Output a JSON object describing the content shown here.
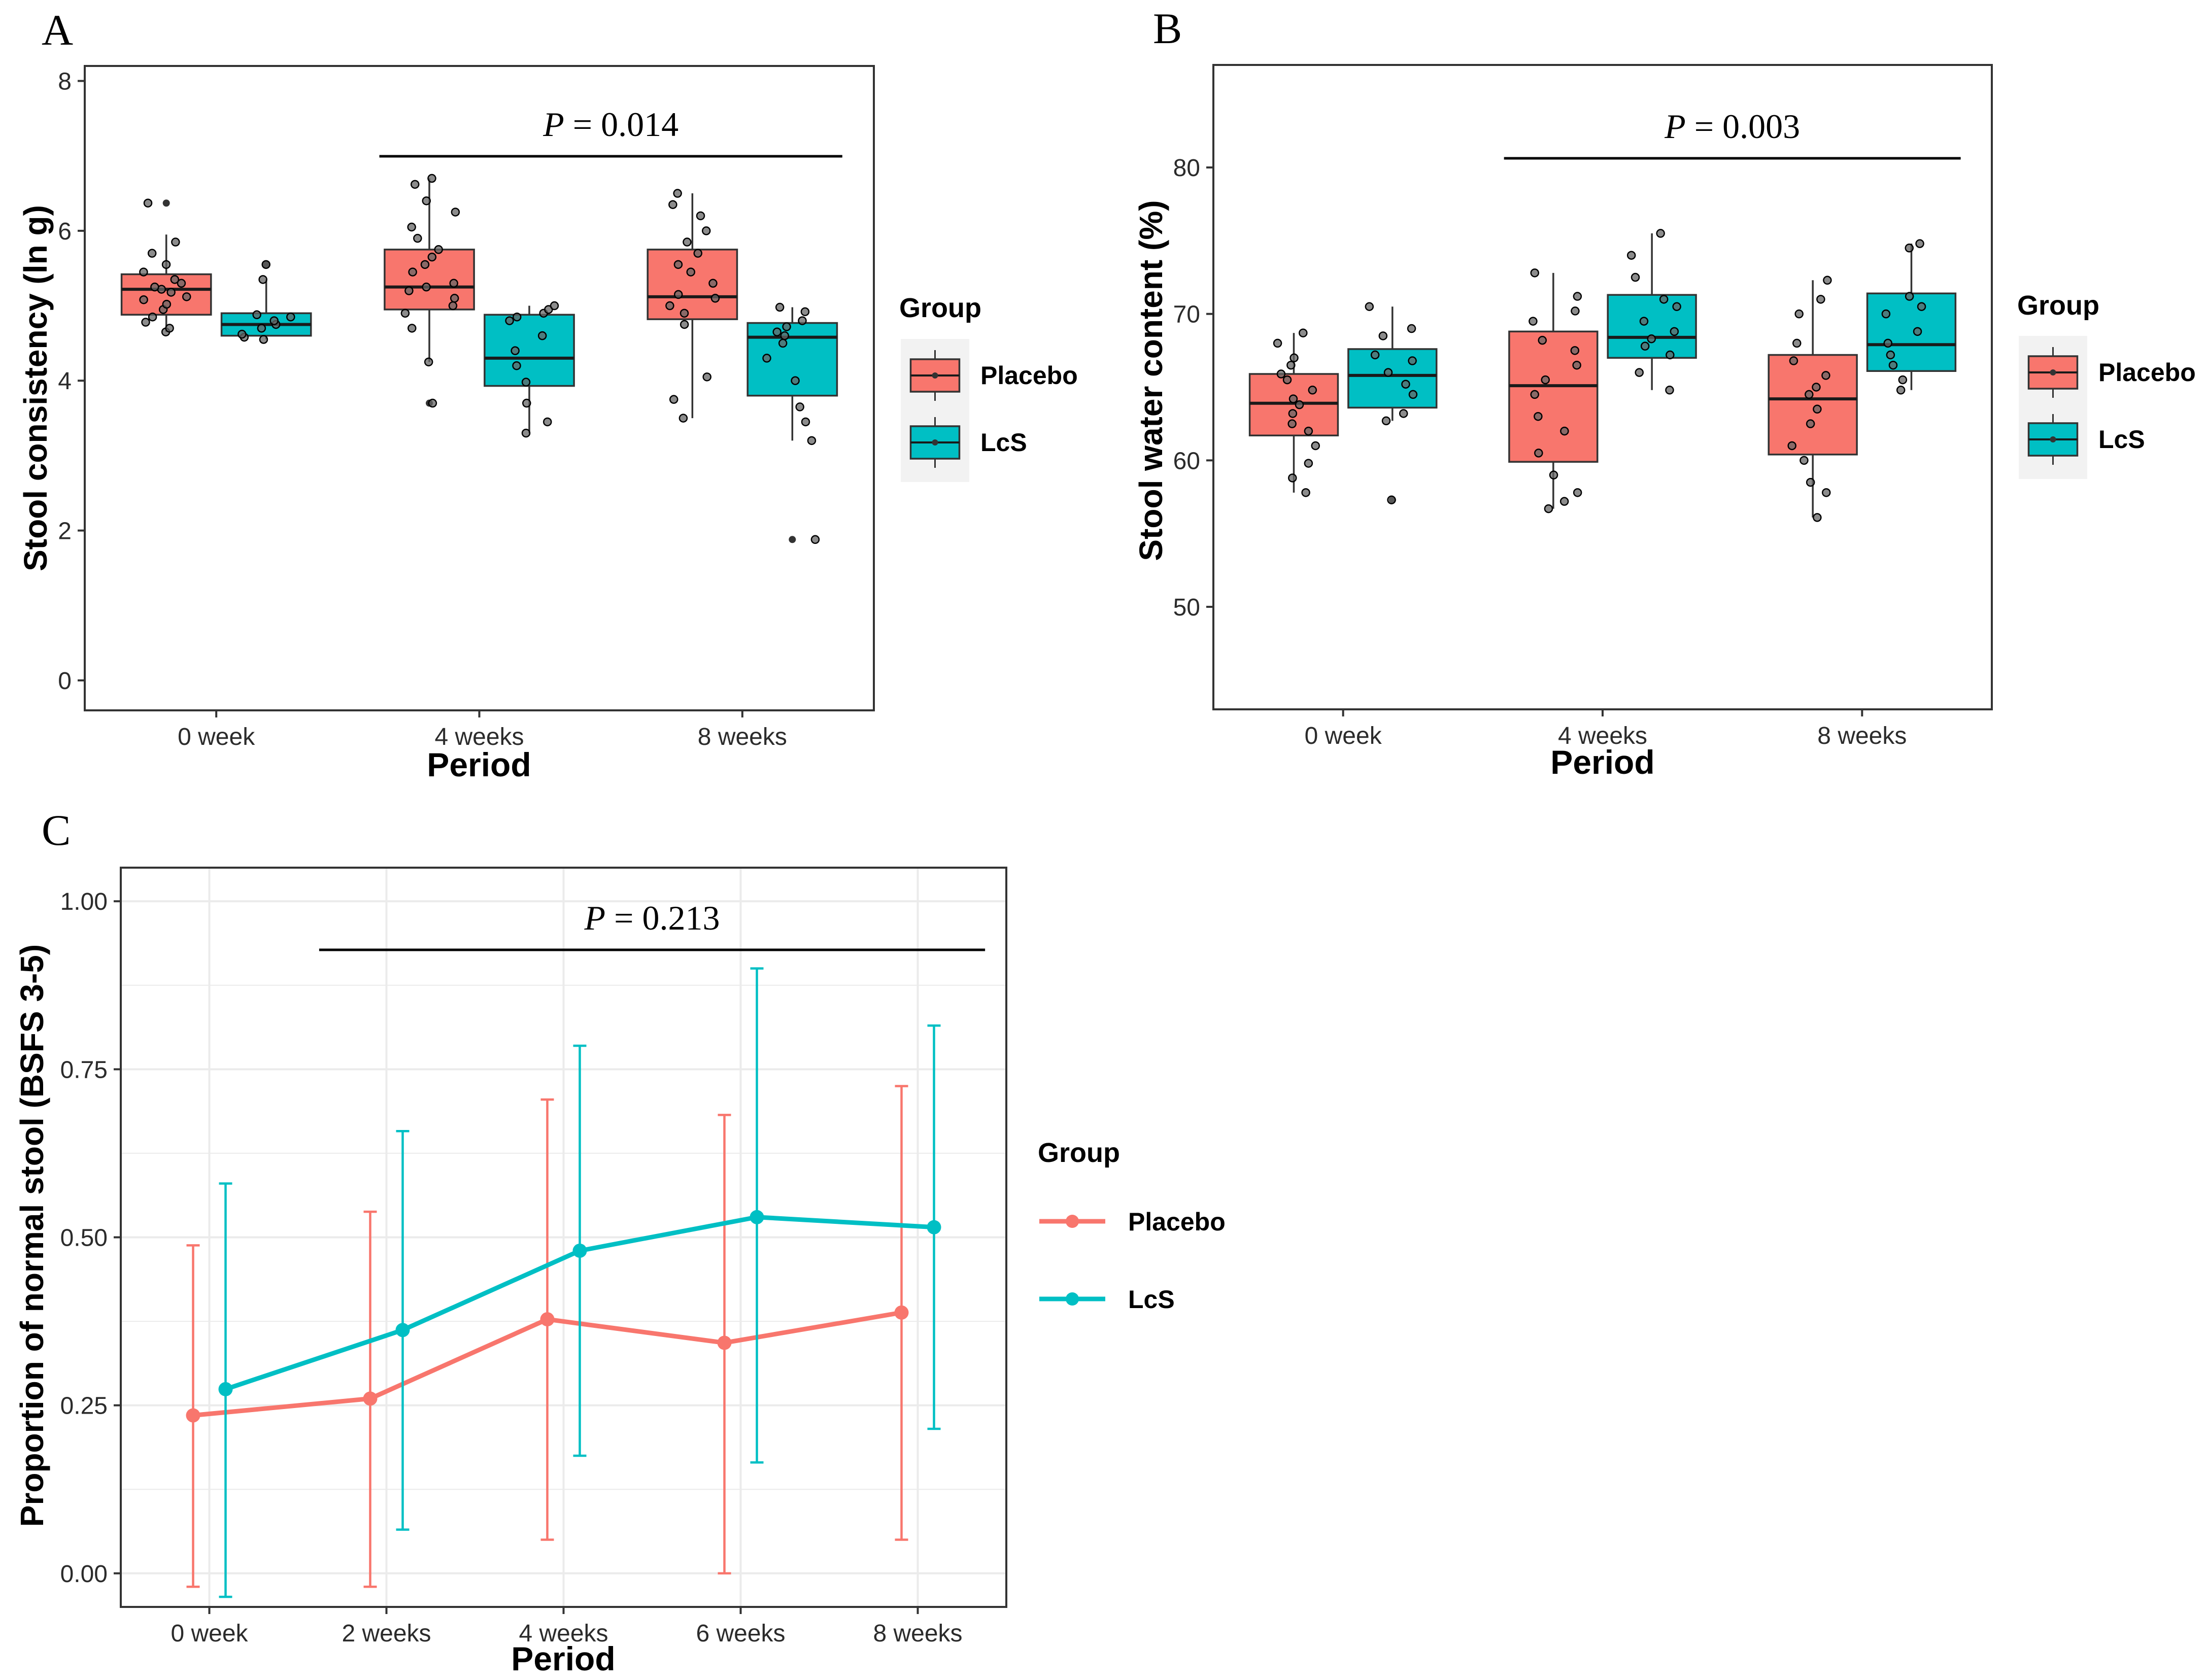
{
  "colors": {
    "placebo": "#F8766D",
    "lcs": "#00BFC4",
    "ink": "#000000",
    "jitter": "#333333",
    "panel_border": "#333333",
    "grid": "#EBEBEB",
    "legend_key_bg": "#F2F2F2"
  },
  "chart_data": [
    {
      "panel": "A",
      "type": "box",
      "xlabel": "Period",
      "ylabel": "Stool consistency (ln g)",
      "categories": [
        "0 week",
        "4 weeks",
        "8 weeks"
      ],
      "ylim": [
        -0.4,
        8.2
      ],
      "yticks": [
        0,
        2,
        4,
        6,
        8
      ],
      "legend": {
        "title": "Group",
        "entries": [
          "Placebo",
          "LcS"
        ],
        "position": "right"
      },
      "annotation": {
        "p_label": "P",
        "p_rest": " = 0.014",
        "from_category": "4 weeks",
        "to_category": "8 weeks"
      },
      "series": [
        {
          "name": "Placebo",
          "boxes": [
            {
              "q1": 4.88,
              "median": 5.22,
              "q3": 5.42,
              "lower": 4.65,
              "upper": 5.95,
              "outliers": [
                6.37
              ],
              "points": [
                4.65,
                4.7,
                4.78,
                4.85,
                4.95,
                5.02,
                5.08,
                5.12,
                5.18,
                5.22,
                5.25,
                5.3,
                5.35,
                5.45,
                5.55,
                5.7,
                5.85,
                6.37
              ]
            },
            {
              "q1": 4.95,
              "median": 5.25,
              "q3": 5.75,
              "lower": 4.25,
              "upper": 6.7,
              "outliers": [
                3.7
              ],
              "points": [
                3.7,
                4.25,
                4.7,
                4.9,
                5.0,
                5.1,
                5.2,
                5.25,
                5.3,
                5.45,
                5.55,
                5.65,
                5.75,
                5.9,
                6.05,
                6.25,
                6.4,
                6.62,
                6.7
              ]
            },
            {
              "q1": 4.82,
              "median": 5.12,
              "q3": 5.75,
              "lower": 3.5,
              "upper": 6.5,
              "outliers": [],
              "points": [
                3.5,
                3.75,
                4.05,
                4.75,
                4.9,
                5.0,
                5.1,
                5.15,
                5.3,
                5.45,
                5.55,
                5.7,
                5.85,
                6.0,
                6.2,
                6.35,
                6.5
              ]
            }
          ]
        },
        {
          "name": "LcS",
          "boxes": [
            {
              "q1": 4.6,
              "median": 4.75,
              "q3": 4.9,
              "lower": 4.55,
              "upper": 5.35,
              "outliers": [
                5.55
              ],
              "points": [
                4.55,
                4.58,
                4.62,
                4.7,
                4.75,
                4.8,
                4.85,
                4.88,
                5.35,
                5.55
              ]
            },
            {
              "q1": 3.93,
              "median": 4.3,
              "q3": 4.88,
              "lower": 3.3,
              "upper": 5.0,
              "outliers": [],
              "points": [
                3.3,
                3.45,
                3.7,
                3.98,
                4.2,
                4.4,
                4.6,
                4.8,
                4.85,
                4.9,
                4.95,
                5.0
              ]
            },
            {
              "q1": 3.8,
              "median": 4.58,
              "q3": 4.77,
              "lower": 3.2,
              "upper": 4.98,
              "outliers": [
                1.88
              ],
              "points": [
                1.88,
                3.2,
                3.45,
                3.65,
                4.0,
                4.3,
                4.5,
                4.6,
                4.65,
                4.72,
                4.8,
                4.92,
                4.98
              ]
            }
          ]
        }
      ]
    },
    {
      "panel": "B",
      "type": "box",
      "xlabel": "Period",
      "ylabel": "Stool water content (%)",
      "categories": [
        "0 week",
        "4 weeks",
        "8 weeks"
      ],
      "ylim": [
        43,
        87
      ],
      "yticks": [
        50,
        60,
        70,
        80
      ],
      "legend": {
        "title": "Group",
        "entries": [
          "Placebo",
          "LcS"
        ],
        "position": "right"
      },
      "annotation": {
        "p_label": "P",
        "p_rest": " = 0.003",
        "from_category": "4 weeks",
        "to_category": "8 weeks"
      },
      "series": [
        {
          "name": "Placebo",
          "boxes": [
            {
              "q1": 61.7,
              "median": 63.9,
              "q3": 65.9,
              "lower": 57.8,
              "upper": 68.7,
              "outliers": [],
              "points": [
                57.8,
                58.8,
                59.8,
                61.0,
                62.0,
                62.5,
                63.2,
                63.8,
                64.2,
                64.8,
                65.5,
                65.9,
                66.5,
                67.0,
                68.0,
                68.7
              ]
            },
            {
              "q1": 59.9,
              "median": 65.1,
              "q3": 68.8,
              "lower": 56.7,
              "upper": 72.8,
              "outliers": [],
              "points": [
                56.7,
                57.2,
                57.8,
                59.0,
                60.5,
                62.0,
                63.0,
                64.5,
                65.5,
                66.5,
                67.5,
                68.2,
                69.5,
                70.2,
                71.2,
                72.8
              ]
            },
            {
              "q1": 60.4,
              "median": 64.2,
              "q3": 67.2,
              "lower": 56.1,
              "upper": 72.3,
              "outliers": [],
              "points": [
                56.1,
                57.8,
                58.5,
                60.0,
                61.0,
                62.5,
                63.5,
                64.5,
                65.0,
                65.8,
                66.8,
                68.0,
                70.0,
                71.0,
                72.3
              ]
            }
          ]
        },
        {
          "name": "LcS",
          "boxes": [
            {
              "q1": 63.6,
              "median": 65.8,
              "q3": 67.6,
              "lower": 62.7,
              "upper": 70.5,
              "outliers": [
                57.3
              ],
              "points": [
                57.3,
                62.7,
                63.2,
                64.5,
                65.2,
                66.0,
                66.8,
                67.2,
                68.5,
                69.0,
                70.5
              ]
            },
            {
              "q1": 67.0,
              "median": 68.4,
              "q3": 71.3,
              "lower": 64.8,
              "upper": 75.5,
              "outliers": [],
              "points": [
                64.8,
                66.0,
                67.2,
                67.8,
                68.3,
                68.8,
                69.5,
                70.5,
                71.0,
                72.5,
                74.0,
                75.5
              ]
            },
            {
              "q1": 66.1,
              "median": 67.9,
              "q3": 71.4,
              "lower": 64.8,
              "upper": 74.8,
              "outliers": [],
              "points": [
                64.8,
                65.5,
                66.5,
                67.2,
                68.0,
                68.8,
                70.0,
                70.5,
                71.2,
                74.5,
                74.8
              ]
            }
          ]
        }
      ]
    },
    {
      "panel": "C",
      "type": "line",
      "xlabel": "Period",
      "ylabel": "Proportion of normal stool (BSFS 3-5)",
      "categories": [
        "0 week",
        "2 weeks",
        "4 weeks",
        "6 weeks",
        "8 weeks"
      ],
      "ylim": [
        -0.05,
        1.05
      ],
      "yticks": [
        0.0,
        0.25,
        0.5,
        0.75,
        1.0
      ],
      "ytick_labels": [
        "0.00",
        "0.25",
        "0.50",
        "0.75",
        "1.00"
      ],
      "legend": {
        "title": "Group",
        "entries": [
          "Placebo",
          "LcS"
        ],
        "position": "right"
      },
      "annotation": {
        "p_label": "P",
        "p_rest": " = 0.213",
        "from_category": "2 weeks",
        "to_category": "8 weeks"
      },
      "series": [
        {
          "name": "Placebo",
          "values": [
            0.235,
            0.26,
            0.378,
            0.343,
            0.388
          ],
          "lower": [
            -0.02,
            -0.02,
            0.05,
            0.0,
            0.05
          ],
          "upper": [
            0.488,
            0.538,
            0.705,
            0.682,
            0.725
          ]
        },
        {
          "name": "LcS",
          "values": [
            0.274,
            0.362,
            0.48,
            0.53,
            0.515
          ],
          "lower": [
            -0.035,
            0.065,
            0.175,
            0.165,
            0.215
          ],
          "upper": [
            0.58,
            0.658,
            0.785,
            0.9,
            0.815
          ]
        }
      ]
    }
  ]
}
